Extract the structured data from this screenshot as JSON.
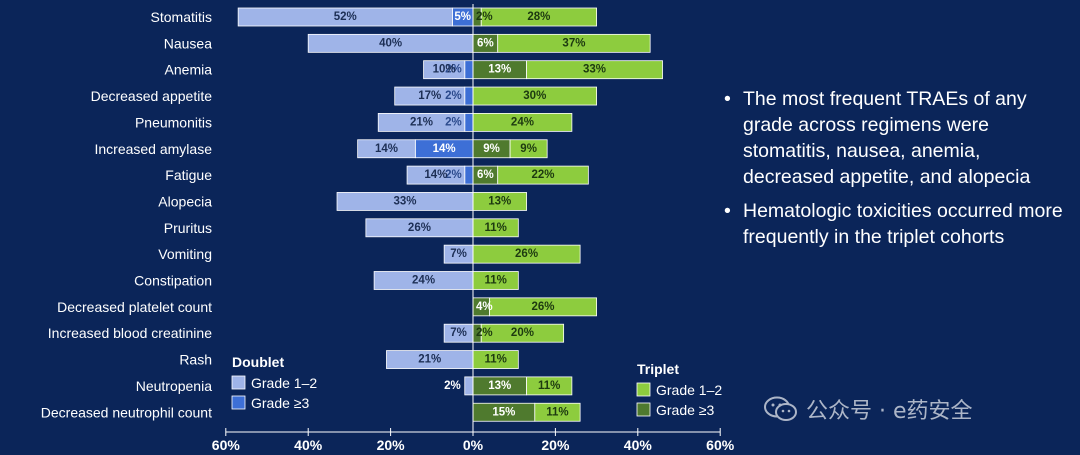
{
  "chart_data": {
    "type": "bar",
    "orientation": "horizontal-diverging",
    "categories": [
      "Stomatitis",
      "Nausea",
      "Anemia",
      "Decreased appetite",
      "Pneumonitis",
      "Increased amylase",
      "Fatigue",
      "Alopecia",
      "Pruritus",
      "Vomiting",
      "Constipation",
      "Decreased platelet count",
      "Increased blood creatinine",
      "Rash",
      "Neutropenia",
      "Decreased neutrophil count"
    ],
    "doublet": {
      "group_label": "Doublet",
      "series": [
        {
          "name": "Grade 1–2",
          "color": "#9fb4e8",
          "values": [
            52,
            40,
            10,
            17,
            21,
            14,
            14,
            33,
            26,
            7,
            24,
            0,
            7,
            21,
            2,
            0
          ],
          "labels": [
            "52%",
            "40%",
            "10%",
            "17%",
            "21%",
            "14%",
            "14%",
            "33%",
            "26%",
            "7%",
            "24%",
            "",
            "7%",
            "21%",
            "2%",
            ""
          ]
        },
        {
          "name": "Grade ≥3",
          "color": "#3d6fd6",
          "values": [
            5,
            0,
            2,
            2,
            2,
            14,
            2,
            0,
            0,
            0,
            0,
            0,
            0,
            0,
            0,
            0
          ],
          "labels": [
            "5%",
            "",
            "2%",
            "2%",
            "2%",
            "14%",
            "2%",
            "",
            "",
            "",
            "",
            "",
            "",
            "",
            "",
            ""
          ]
        }
      ]
    },
    "triplet": {
      "group_label": "Triplet",
      "series": [
        {
          "name": "Grade ≥3",
          "color": "#4f7a2e",
          "values": [
            2,
            6,
            13,
            0,
            0,
            9,
            6,
            0,
            0,
            0,
            0,
            4,
            2,
            0,
            13,
            15
          ],
          "labels": [
            "2%",
            "6%",
            "13%",
            "",
            "",
            "9%",
            "6%",
            "",
            "",
            "",
            "",
            "4%",
            "2%",
            "",
            "13%",
            "15%"
          ]
        },
        {
          "name": "Grade 1–2",
          "color": "#8dcc3e",
          "values": [
            28,
            37,
            33,
            30,
            24,
            9,
            22,
            13,
            11,
            26,
            11,
            26,
            20,
            11,
            11,
            11
          ],
          "labels": [
            "28%",
            "37%",
            "33%",
            "30%",
            "24%",
            "9%",
            "22%",
            "13%",
            "11%",
            "26%",
            "11%",
            "26%",
            "20%",
            "11%",
            "11%",
            "11%"
          ]
        }
      ]
    },
    "xlim": [
      -60,
      60
    ],
    "xticks": [
      "60%",
      "40%",
      "20%",
      "0%",
      "20%",
      "40%",
      "60%"
    ],
    "xtick_values": [
      -60,
      -40,
      -20,
      0,
      20,
      40,
      60
    ],
    "grid": false
  },
  "bullets": [
    "The most frequent TRAEs of any grade across regimens were stomatitis, nausea, anemia, decreased appetite, and alopecia",
    "Hematologic toxicities occurred more frequently in the triplet cohorts"
  ],
  "bullet_char": "•",
  "watermark": "公众号 · e药安全"
}
